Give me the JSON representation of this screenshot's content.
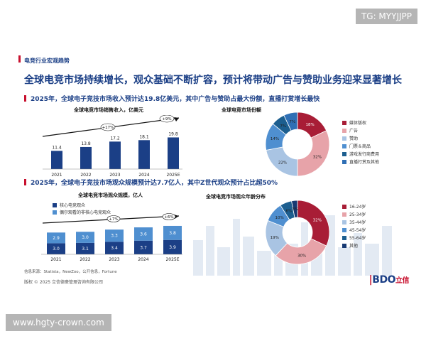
{
  "watermarks": {
    "top_right": "TG: MYYJJPP",
    "bottom_left": "www.hgty-crown.com"
  },
  "header": {
    "section": "电竞行业宏观趋势",
    "title": "全球电竞市场持续增长，观众基础不断扩容，预计将带动广告与赞助业务迎来显著增长",
    "sub1": "2025年，全球电子竞技市场收入预计达19.8亿美元，其中广告与赞助占最大份额，直播打赏增长最快",
    "sub2": "2025年，全球电子竞技市场观众规模预计达7.7亿人，其中Z世代观众预计占比超50%"
  },
  "colors": {
    "navy": "#1b3f86",
    "red": "#a81d36",
    "pink": "#e7a3a9",
    "lightblue": "#a9c4e3",
    "blue": "#4f8fd0",
    "steel": "#1c5e8f",
    "deep": "#173a73",
    "mid": "#2f6fb5"
  },
  "chart_data": [
    {
      "type": "bar",
      "title": "全球电竞市场销售收入，亿美元",
      "categories": [
        "2021",
        "2022",
        "2023",
        "2024",
        "2025E"
      ],
      "values": [
        11.4,
        13.8,
        17.2,
        18.1,
        19.8
      ],
      "cagr_labels": [
        "+17%",
        "+9%"
      ]
    },
    {
      "type": "pie",
      "title": "全球电竞市场份额",
      "labels": [
        "媒体版权",
        "广告",
        "赞助",
        "门票＆商品",
        "游戏发行商费用",
        "直播打赏及其他"
      ],
      "values": [
        18,
        32,
        22,
        14,
        7,
        7
      ],
      "value_labels": [
        "18%",
        "32%",
        "22%",
        "14%",
        "7%",
        "7%"
      ],
      "colors": [
        "#a81d36",
        "#e7a3a9",
        "#a9c4e3",
        "#4f8fd0",
        "#1c5e8f",
        "#2f6fb5"
      ]
    },
    {
      "type": "bar",
      "stacked": true,
      "title": "全球电竞市场观众规模，亿人",
      "categories": [
        "2021",
        "2022",
        "2023",
        "2024",
        "2025E"
      ],
      "series": [
        {
          "name": "核心电竞观众",
          "values": [
            3.0,
            3.1,
            3.4,
            3.7,
            3.9
          ]
        },
        {
          "name": "偶尔观看的非核心电竞观众",
          "values": [
            2.9,
            3.0,
            3.3,
            3.6,
            3.8
          ]
        }
      ],
      "cagr_labels": [
        "+7%",
        "+6%"
      ]
    },
    {
      "type": "pie",
      "title": "全球电竞市场观众年龄分布",
      "labels": [
        "16-24岁",
        "25-34岁",
        "35-44岁",
        "45-54岁",
        "55-64岁",
        "其他"
      ],
      "values": [
        32,
        30,
        19,
        10,
        6,
        3
      ],
      "value_labels": [
        "32%",
        "30%",
        "19%",
        "10%",
        "6%",
        "3%"
      ],
      "colors": [
        "#a81d36",
        "#e7a3a9",
        "#a9c4e3",
        "#4f8fd0",
        "#1c5e8f",
        "#173a73"
      ]
    }
  ],
  "footer": {
    "source": "信息来源：Statista，NewZoo，公开信息，Fortune",
    "copyright": "版权 © 2025 立信德豪管理咨询有限公司"
  },
  "logo": {
    "text": "BDO",
    "cn": "立信"
  }
}
